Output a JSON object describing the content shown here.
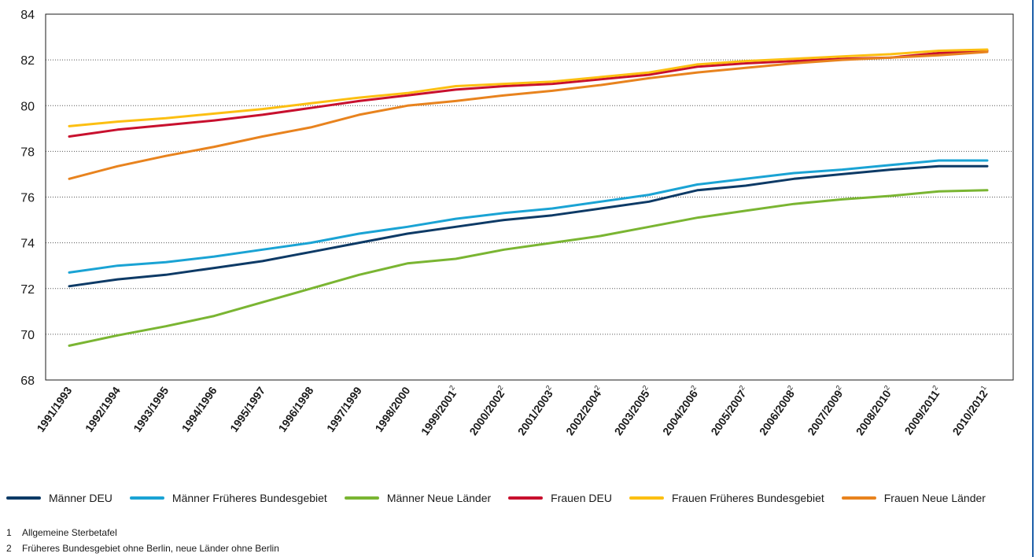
{
  "chart_data": {
    "type": "line",
    "categories": [
      "1991/1993",
      "1992/1994",
      "1993/1995",
      "1994/1996",
      "1995/1997",
      "1996/1998",
      "1997/1999",
      "1998/2000",
      "1999/2001",
      "2000/2002",
      "2001/2003",
      "2002/2004",
      "2003/2005",
      "2004/2006",
      "2005/2007",
      "2006/2008",
      "2007/2009",
      "2008/2010",
      "2009/2011",
      "2010/2012"
    ],
    "category_superscripts": [
      "",
      "",
      "",
      "",
      "",
      "",
      "",
      "",
      "2",
      "2",
      "2",
      "2",
      "2",
      "2",
      "2",
      "2",
      "2",
      "2",
      "2",
      "1"
    ],
    "ylim": [
      68,
      84
    ],
    "yticks": [
      68,
      70,
      72,
      74,
      76,
      78,
      80,
      82,
      84
    ],
    "grid": "horizontal dotted",
    "legend_position": "bottom",
    "series": [
      {
        "name": "Männer DEU",
        "color": "#0d3a66",
        "values": [
          72.1,
          72.4,
          72.6,
          72.9,
          73.2,
          73.6,
          74.0,
          74.4,
          74.7,
          75.0,
          75.2,
          75.5,
          75.8,
          76.3,
          76.5,
          76.8,
          77.0,
          77.2,
          77.35,
          77.35
        ]
      },
      {
        "name": "Männer Früheres Bundesgebiet",
        "color": "#1aa3d4",
        "values": [
          72.7,
          73.0,
          73.15,
          73.4,
          73.7,
          74.0,
          74.4,
          74.7,
          75.05,
          75.3,
          75.5,
          75.8,
          76.1,
          76.55,
          76.8,
          77.05,
          77.2,
          77.4,
          77.6,
          77.6
        ]
      },
      {
        "name": "Männer Neue Länder",
        "color": "#7ab532",
        "values": [
          69.5,
          69.95,
          70.35,
          70.8,
          71.4,
          72.0,
          72.6,
          73.1,
          73.3,
          73.7,
          74.0,
          74.3,
          74.7,
          75.1,
          75.4,
          75.7,
          75.9,
          76.05,
          76.25,
          76.3
        ]
      },
      {
        "name": "Frauen DEU",
        "color": "#c8102e",
        "values": [
          78.65,
          78.95,
          79.15,
          79.35,
          79.6,
          79.9,
          80.2,
          80.45,
          80.7,
          80.85,
          80.95,
          81.15,
          81.35,
          81.7,
          81.85,
          81.95,
          82.05,
          82.1,
          82.3,
          82.4
        ]
      },
      {
        "name": "Frauen Früheres Bundesgebiet",
        "color": "#fcbf12",
        "values": [
          79.1,
          79.3,
          79.45,
          79.65,
          79.85,
          80.1,
          80.35,
          80.55,
          80.85,
          80.95,
          81.05,
          81.25,
          81.45,
          81.8,
          81.95,
          82.05,
          82.15,
          82.25,
          82.4,
          82.45
        ]
      },
      {
        "name": "Frauen Neue Länder",
        "color": "#e8831e",
        "values": [
          76.8,
          77.35,
          77.8,
          78.2,
          78.65,
          79.05,
          79.6,
          80.0,
          80.2,
          80.45,
          80.65,
          80.9,
          81.2,
          81.45,
          81.65,
          81.85,
          82.0,
          82.1,
          82.2,
          82.35
        ]
      }
    ]
  },
  "footnotes": [
    {
      "number": "1",
      "text": "Allgemeine Sterbetafel"
    },
    {
      "number": "2",
      "text": "Früheres Bundesgebiet ohne Berlin, neue Länder ohne Berlin"
    }
  ]
}
